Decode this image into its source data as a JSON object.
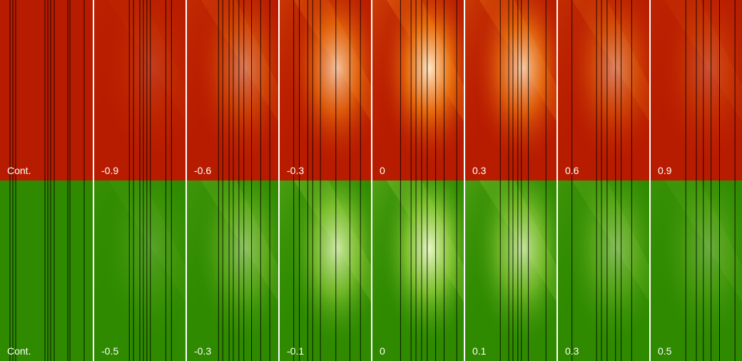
{
  "mosaic": {
    "colors": {
      "red_row_base": "#b81c00",
      "red_row_bright": "#ffe9c8",
      "red_row_mid": "#f07a10",
      "green_row_base": "#2f8a00",
      "green_row_bright": "#e9f7c6",
      "green_row_mid": "#8fcc3a",
      "separator": "#ffffff",
      "scan_line": "#000000",
      "label": "#ffffff"
    },
    "rows": [
      {
        "name": "red-row",
        "labels": [
          "Cont.",
          "-0.9",
          "-0.6",
          "-0.3",
          "0",
          "0.3",
          "0.6",
          "0.9"
        ],
        "brightness": [
          0.0,
          0.15,
          0.45,
          0.8,
          1.0,
          0.85,
          0.5,
          0.25
        ]
      },
      {
        "name": "green-row",
        "labels": [
          "Cont.",
          "-0.5",
          "-0.3",
          "-0.1",
          "0",
          "0.1",
          "0.3",
          "0.5"
        ],
        "brightness": [
          0.0,
          0.2,
          0.5,
          0.85,
          1.0,
          0.8,
          0.45,
          0.3
        ]
      }
    ]
  }
}
